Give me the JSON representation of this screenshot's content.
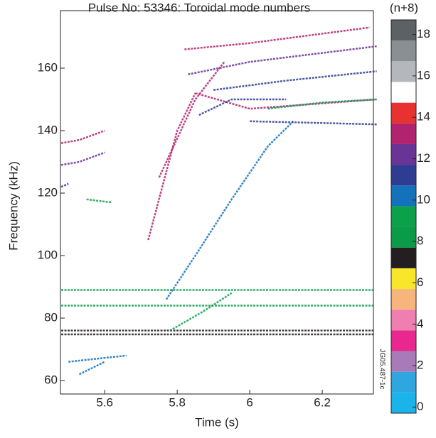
{
  "chart_data": {
    "type": "spectrogram",
    "title": "Pulse No: 53346: Toroidal mode numbers",
    "xlabel": "Time (s)",
    "ylabel": "Frequency (kHz)",
    "xlim": [
      5.478,
      6.341
    ],
    "ylim": [
      55.7,
      178.4
    ],
    "xticks": [
      5.6,
      5.8,
      6,
      6.2
    ],
    "yticks": [
      60,
      80,
      100,
      120,
      140,
      160
    ],
    "figure_id": "JG05.487-1c",
    "colorbar": {
      "label": "(n+8)",
      "lim": [
        -0.5,
        18.5
      ],
      "ticks": [
        0,
        2,
        4,
        6,
        8,
        10,
        12,
        14,
        16,
        18
      ],
      "colors": [
        "#1ab4ea",
        "#2fa6e0",
        "#a87bb8",
        "#e8288e",
        "#ef7fb0",
        "#f7b47c",
        "#f8e62a",
        "#231f20",
        "#0a9b48",
        "#0ba14b",
        "#1472bb",
        "#2e3c92",
        "#6a3396",
        "#b1236e",
        "#e83232",
        "#ffffff",
        "#b4b8bc",
        "#8a8f93",
        "#5c6264"
      ]
    },
    "traces": [
      {
        "n": 7,
        "x": [
          5.48,
          6.34
        ],
        "y": [
          76,
          76
        ]
      },
      {
        "n": 7,
        "x": [
          5.48,
          6.34
        ],
        "y": [
          74.8,
          74.8
        ]
      },
      {
        "n": 8,
        "x": [
          5.48,
          6.34
        ],
        "y": [
          84,
          84
        ]
      },
      {
        "n": 9,
        "x": [
          5.48,
          6.34
        ],
        "y": [
          89,
          89
        ]
      },
      {
        "n": 10,
        "x": [
          5.77,
          5.85,
          5.95,
          6.05,
          6.12
        ],
        "y": [
          86,
          100,
          118,
          135,
          143
        ]
      },
      {
        "n": 9,
        "x": [
          5.78,
          5.87,
          5.95
        ],
        "y": [
          76,
          82,
          88
        ]
      },
      {
        "n": 10,
        "x": [
          5.5,
          5.66
        ],
        "y": [
          66,
          68
        ]
      },
      {
        "n": 10,
        "x": [
          5.53,
          5.6
        ],
        "y": [
          62,
          66
        ]
      },
      {
        "n": 13,
        "x": [
          5.48,
          5.53,
          5.6
        ],
        "y": [
          136,
          137,
          140
        ]
      },
      {
        "n": 12,
        "x": [
          5.48,
          5.53,
          5.6
        ],
        "y": [
          129,
          130,
          133
        ]
      },
      {
        "n": 11,
        "x": [
          5.48,
          5.5
        ],
        "y": [
          122,
          123
        ]
      },
      {
        "n": 9,
        "x": [
          5.55,
          5.62
        ],
        "y": [
          118,
          117
        ]
      },
      {
        "n": 13,
        "x": [
          5.82,
          6.0,
          6.33
        ],
        "y": [
          166,
          168,
          173
        ]
      },
      {
        "n": 12,
        "x": [
          5.83,
          6.0,
          6.35
        ],
        "y": [
          158,
          162,
          167
        ]
      },
      {
        "n": 11,
        "x": [
          5.9,
          6.1,
          6.35
        ],
        "y": [
          153,
          156,
          159
        ]
      },
      {
        "n": 13,
        "x": [
          5.85,
          6.0,
          6.35
        ],
        "y": [
          152,
          147,
          150
        ]
      },
      {
        "n": 11,
        "x": [
          6.0,
          6.35
        ],
        "y": [
          143,
          142
        ]
      },
      {
        "n": 9,
        "x": [
          6.05,
          6.2,
          6.35
        ],
        "y": [
          147,
          149,
          150
        ]
      },
      {
        "n": 13,
        "x": [
          5.72,
          5.8,
          5.85
        ],
        "y": [
          105,
          140,
          152
        ]
      },
      {
        "n": 13,
        "x": [
          5.75,
          5.85,
          5.93
        ],
        "y": [
          125,
          150,
          162
        ]
      },
      {
        "n": 11,
        "x": [
          5.86,
          5.95,
          6.1
        ],
        "y": [
          145,
          150,
          150
        ]
      }
    ]
  }
}
